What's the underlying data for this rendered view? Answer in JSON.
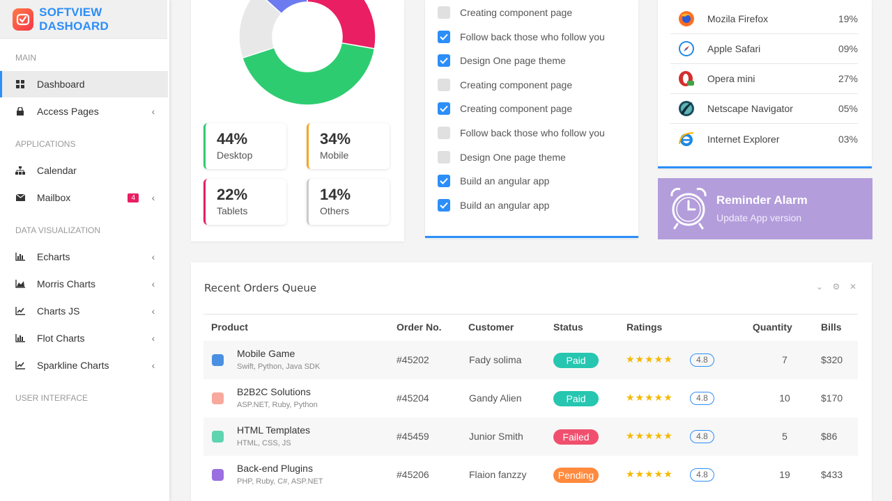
{
  "brand": {
    "name": "SOFTVIEW DASHOARD"
  },
  "sidebar": {
    "sections": [
      "MAIN",
      "APPLICATIONS",
      "DATA VISUALIZATION",
      "USER INTERFACE"
    ],
    "items": [
      {
        "label": "Dashboard"
      },
      {
        "label": "Access Pages"
      },
      {
        "label": "Calendar"
      },
      {
        "label": "Mailbox",
        "badge": "4"
      },
      {
        "label": "Echarts"
      },
      {
        "label": "Morris Charts"
      },
      {
        "label": "Charts JS"
      },
      {
        "label": "Flot Charts"
      },
      {
        "label": "Sparkline Charts"
      }
    ]
  },
  "device_stats": {
    "donut": [
      {
        "name": "Desktop",
        "value": 44,
        "color": "#2ecc71"
      },
      {
        "name": "Mobile",
        "value": 34,
        "color": "#e91e63"
      },
      {
        "name": "Tablets",
        "value": 22,
        "color": "#6c7bf0"
      },
      {
        "name": "Others",
        "value": 14,
        "color": "#e8e8e8"
      }
    ],
    "boxes": [
      {
        "value": "44%",
        "label": "Desktop",
        "color": "#2ecc71"
      },
      {
        "value": "34%",
        "label": "Mobile",
        "color": "#f5a623"
      },
      {
        "value": "22%",
        "label": "Tablets",
        "color": "#e91e63"
      },
      {
        "value": "14%",
        "label": "Others",
        "color": "#cccccc"
      }
    ]
  },
  "todos": [
    {
      "text": "Creating component page",
      "checked": false
    },
    {
      "text": "Follow back those who follow you",
      "checked": true
    },
    {
      "text": "Design One page theme",
      "checked": true
    },
    {
      "text": "Creating component page",
      "checked": false
    },
    {
      "text": "Creating component page",
      "checked": true
    },
    {
      "text": "Follow back those who follow you",
      "checked": false
    },
    {
      "text": "Design One page theme",
      "checked": false
    },
    {
      "text": "Build an angular app",
      "checked": true
    },
    {
      "text": "Build an angular app",
      "checked": true
    }
  ],
  "browsers": [
    {
      "name": "Mozila Firefox",
      "pct": "19%",
      "icon": "firefox-icon"
    },
    {
      "name": "Apple Safari",
      "pct": "09%",
      "icon": "safari-icon"
    },
    {
      "name": "Opera mini",
      "pct": "27%",
      "icon": "opera-icon"
    },
    {
      "name": "Netscape Navigator",
      "pct": "05%",
      "icon": "netscape-icon"
    },
    {
      "name": "Internet Explorer",
      "pct": "03%",
      "icon": "ie-icon"
    }
  ],
  "reminder": {
    "title": "Reminder Alarm",
    "subtitle": "Update App version",
    "color": "#b39ddb"
  },
  "orders": {
    "title": "Recent Orders Queue",
    "headers": [
      "Product",
      "Order No.",
      "Customer",
      "Status",
      "Ratings",
      "Quantity",
      "Bills"
    ],
    "rows": [
      {
        "product": "Mobile Game",
        "tech": "Swift, Python, Java SDK",
        "order": "#45202",
        "customer": "Fady solima",
        "status": "Paid",
        "status_color": "#26c6b0",
        "stars": "★★★★★",
        "rating": "4.8",
        "qty": "7",
        "bill": "$320",
        "color": "#4a90e2"
      },
      {
        "product": "B2B2C Solutions",
        "tech": "ASP.NET, Ruby, Python",
        "order": "#45204",
        "customer": "Gandy Alien",
        "status": "Paid",
        "status_color": "#26c6b0",
        "stars": "★★★★★",
        "rating": "4.8",
        "qty": "10",
        "bill": "$170",
        "color": "#f8a89c"
      },
      {
        "product": "HTML Templates",
        "tech": "HTML, CSS, JS",
        "order": "#45459",
        "customer": "Junior Smith",
        "status": "Failed",
        "status_color": "#f0506e",
        "stars": "★★★★★",
        "rating": "4.8",
        "qty": "5",
        "bill": "$86",
        "color": "#5fd4b0"
      },
      {
        "product": "Back-end Plugins",
        "tech": "PHP, Ruby, C#, ASP.NET",
        "order": "#45206",
        "customer": "Flaion fanzzy",
        "status": "Pending",
        "status_color": "#ff8a3d",
        "stars": "★★★★★",
        "rating": "4.8",
        "qty": "19",
        "bill": "$433",
        "color": "#9b6fe0"
      }
    ]
  }
}
